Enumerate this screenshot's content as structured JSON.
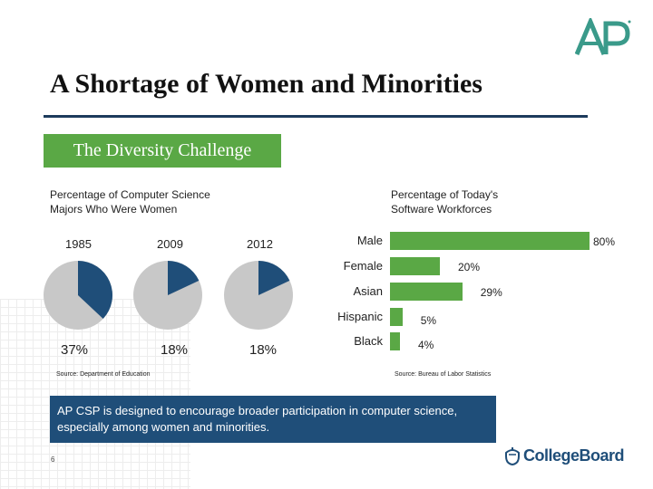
{
  "title": "A Shortage of Women and Minorities",
  "subtitle": "The Diversity Challenge",
  "left_section": {
    "heading_line1": "Percentage of Computer Science",
    "heading_line2": "Majors Who Were Women",
    "source": "Source: Department of Education"
  },
  "right_section": {
    "heading_line1": "Percentage of Today's",
    "heading_line2": "Software Workforces",
    "source": "Source: Bureau of Labor Statistics"
  },
  "callout": "AP CSP is designed to encourage broader participation in computer science, especially among women and minorities.",
  "page_number": "6",
  "logo": {
    "ap_text": "AP",
    "collegeboard_text": "CollegeBoard"
  },
  "colors": {
    "navy": "#1f4e79",
    "green": "#5aa845",
    "gray": "#c8c8c8"
  },
  "chart_data": [
    {
      "type": "pie",
      "categories": [
        "1985",
        "2009",
        "2012"
      ],
      "values": [
        37,
        18,
        18
      ],
      "labels": [
        "37%",
        "18%",
        "18%"
      ]
    },
    {
      "type": "bar",
      "orientation": "horizontal",
      "categories": [
        "Male",
        "Female",
        "Asian",
        "Hispanic",
        "Black"
      ],
      "values": [
        80,
        20,
        29,
        5,
        4
      ],
      "labels": [
        "80%",
        "20%",
        "29%",
        "5%",
        "4%"
      ]
    }
  ]
}
